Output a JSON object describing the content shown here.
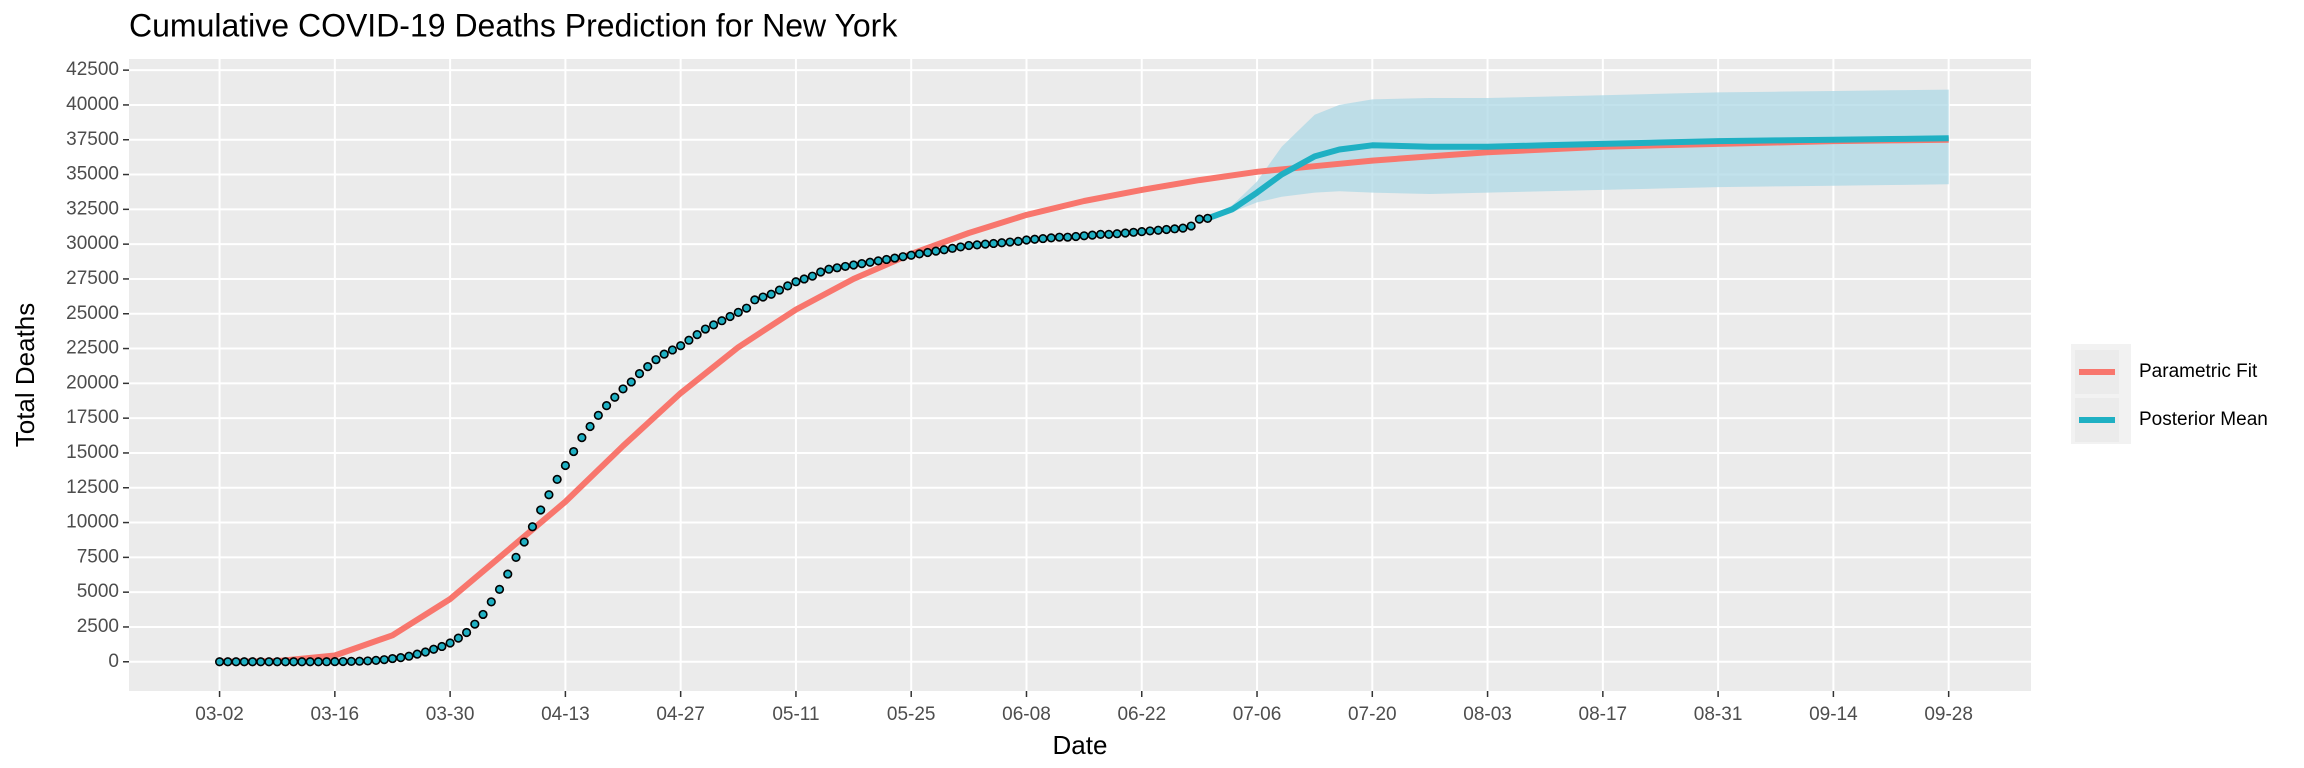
{
  "chart_data": {
    "type": "line",
    "title": "Cumulative COVID-19 Deaths Prediction for New York",
    "xlabel": "Date",
    "ylabel": "Total Deaths",
    "xlim": [
      "02-20",
      "10-08"
    ],
    "xticks": [
      "03-02",
      "03-16",
      "03-30",
      "04-13",
      "04-27",
      "05-11",
      "05-25",
      "06-08",
      "06-22",
      "07-06",
      "07-20",
      "08-03",
      "08-17",
      "08-31",
      "09-14",
      "09-28"
    ],
    "ylim": [
      -2100,
      43300
    ],
    "yticks": [
      0,
      2500,
      5000,
      7500,
      10000,
      12500,
      15000,
      17500,
      20000,
      22500,
      25000,
      27500,
      30000,
      32500,
      35000,
      37500,
      40000,
      42500
    ],
    "grid": true,
    "legend": "right",
    "series": [
      {
        "name": "Parametric Fit",
        "color": "#F8766D",
        "x": [
          "03-02",
          "03-09",
          "03-16",
          "03-23",
          "03-30",
          "04-06",
          "04-13",
          "04-20",
          "04-27",
          "05-04",
          "05-11",
          "05-18",
          "05-25",
          "06-01",
          "06-08",
          "06-15",
          "06-22",
          "06-29",
          "07-06",
          "07-13",
          "07-20",
          "07-27",
          "08-03",
          "08-10",
          "08-17",
          "08-24",
          "08-31",
          "09-07",
          "09-14",
          "09-21",
          "09-28"
        ],
        "values": [
          0,
          50,
          450,
          1900,
          4500,
          8000,
          11500,
          15500,
          19300,
          22600,
          25300,
          27500,
          29300,
          30800,
          32100,
          33100,
          33900,
          34600,
          35200,
          35600,
          36000,
          36300,
          36600,
          36800,
          37000,
          37100,
          37200,
          37300,
          37400,
          37450,
          37500
        ]
      },
      {
        "name": "Posterior Mean",
        "color": "#1FB0C3",
        "band_color": "#ADD8E6",
        "x": [
          "06-30",
          "07-03",
          "07-06",
          "07-09",
          "07-13",
          "07-16",
          "07-20",
          "07-27",
          "08-03",
          "08-10",
          "08-17",
          "08-24",
          "08-31",
          "09-07",
          "09-14",
          "09-21",
          "09-28"
        ],
        "values": [
          31850,
          32500,
          33700,
          35000,
          36300,
          36800,
          37100,
          37000,
          37000,
          37100,
          37200,
          37300,
          37400,
          37450,
          37500,
          37550,
          37600
        ],
        "lower": [
          31850,
          32300,
          33000,
          33400,
          33700,
          33800,
          33700,
          33600,
          33700,
          33800,
          33900,
          34000,
          34100,
          34150,
          34200,
          34250,
          34300
        ],
        "upper": [
          31850,
          32800,
          34500,
          37000,
          39300,
          40000,
          40400,
          40500,
          40500,
          40600,
          40700,
          40800,
          40900,
          40950,
          41000,
          41050,
          41100
        ]
      }
    ],
    "observed": {
      "color": "#1FB0C3",
      "edge": "#000000",
      "x": [
        "03-02",
        "03-03",
        "03-04",
        "03-05",
        "03-06",
        "03-07",
        "03-08",
        "03-09",
        "03-10",
        "03-11",
        "03-12",
        "03-13",
        "03-14",
        "03-15",
        "03-16",
        "03-17",
        "03-18",
        "03-19",
        "03-20",
        "03-21",
        "03-22",
        "03-23",
        "03-24",
        "03-25",
        "03-26",
        "03-27",
        "03-28",
        "03-29",
        "03-30",
        "03-31",
        "04-01",
        "04-02",
        "04-03",
        "04-04",
        "04-05",
        "04-06",
        "04-07",
        "04-08",
        "04-09",
        "04-10",
        "04-11",
        "04-12",
        "04-13",
        "04-14",
        "04-15",
        "04-16",
        "04-17",
        "04-18",
        "04-19",
        "04-20",
        "04-21",
        "04-22",
        "04-23",
        "04-24",
        "04-25",
        "04-26",
        "04-27",
        "04-28",
        "04-29",
        "04-30",
        "05-01",
        "05-02",
        "05-03",
        "05-04",
        "05-05",
        "05-06",
        "05-07",
        "05-08",
        "05-09",
        "05-10",
        "05-11",
        "05-12",
        "05-13",
        "05-14",
        "05-15",
        "05-16",
        "05-17",
        "05-18",
        "05-19",
        "05-20",
        "05-21",
        "05-22",
        "05-23",
        "05-24",
        "05-25",
        "05-26",
        "05-27",
        "05-28",
        "05-29",
        "05-30",
        "05-31",
        "06-01",
        "06-02",
        "06-03",
        "06-04",
        "06-05",
        "06-06",
        "06-07",
        "06-08",
        "06-09",
        "06-10",
        "06-11",
        "06-12",
        "06-13",
        "06-14",
        "06-15",
        "06-16",
        "06-17",
        "06-18",
        "06-19",
        "06-20",
        "06-21",
        "06-22",
        "06-23",
        "06-24",
        "06-25",
        "06-26",
        "06-27",
        "06-28",
        "06-29",
        "06-30"
      ],
      "values": [
        0,
        0,
        0,
        0,
        0,
        0,
        0,
        0,
        0,
        0,
        0,
        0,
        2,
        5,
        10,
        15,
        30,
        40,
        60,
        100,
        150,
        230,
        300,
        400,
        550,
        700,
        900,
        1100,
        1350,
        1700,
        2100,
        2700,
        3400,
        4300,
        5200,
        6300,
        7500,
        8600,
        9700,
        10900,
        12000,
        13100,
        14100,
        15100,
        16100,
        16900,
        17700,
        18400,
        19000,
        19600,
        20100,
        20700,
        21200,
        21700,
        22100,
        22400,
        22700,
        23100,
        23500,
        23900,
        24200,
        24500,
        24800,
        25100,
        25400,
        26000,
        26200,
        26400,
        26700,
        27000,
        27300,
        27500,
        27700,
        28000,
        28200,
        28300,
        28400,
        28500,
        28600,
        28700,
        28800,
        28900,
        29000,
        29100,
        29200,
        29300,
        29400,
        29500,
        29600,
        29700,
        29800,
        29900,
        29950,
        30000,
        30050,
        30100,
        30150,
        30200,
        30300,
        30350,
        30400,
        30450,
        30500,
        30500,
        30550,
        30600,
        30650,
        30700,
        30700,
        30750,
        30800,
        30850,
        30900,
        30950,
        31000,
        31050,
        31100,
        31150,
        31300,
        31800,
        31850
      ]
    }
  }
}
